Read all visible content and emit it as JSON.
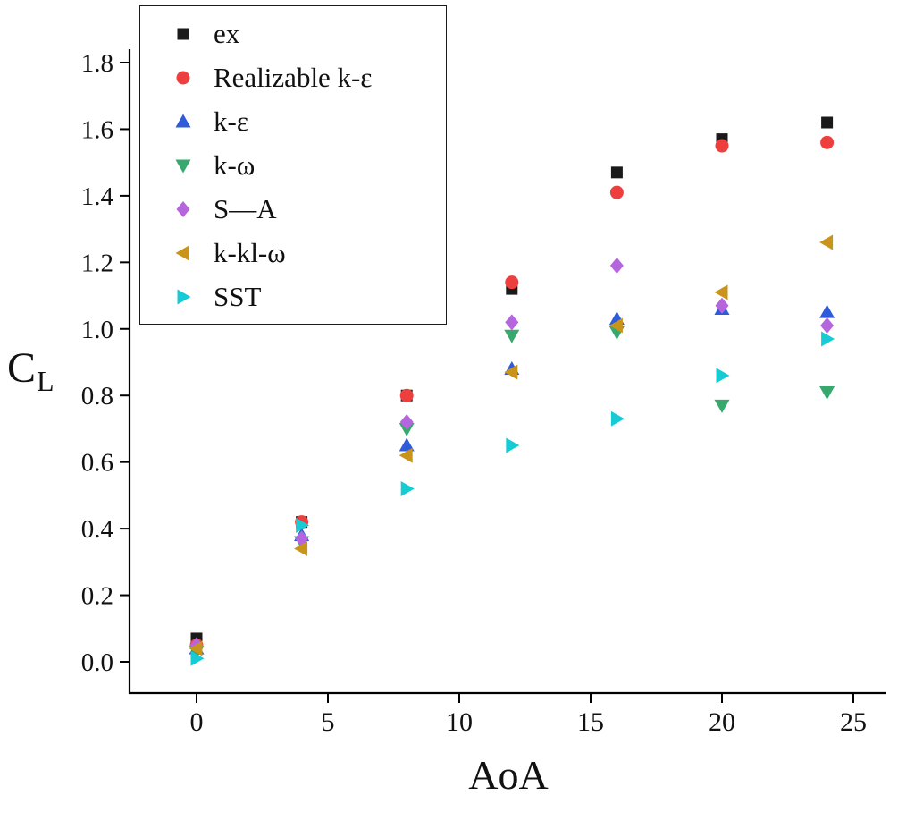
{
  "chart_data": {
    "type": "scatter",
    "title": "",
    "xlabel": "AoA",
    "ylabel": "C_L",
    "ylabel_main": "C",
    "ylabel_sub": "L",
    "xlim": [
      -2.5,
      26.5
    ],
    "ylim": [
      -0.17,
      1.93
    ],
    "x_ticks": [
      "0",
      "5",
      "10",
      "15",
      "20",
      "25"
    ],
    "y_ticks": [
      "0.0",
      "0.2",
      "0.4",
      "0.6",
      "0.8",
      "1.0",
      "1.2",
      "1.4",
      "1.6",
      "1.8"
    ],
    "grid": false,
    "legend_position": "top-left",
    "axis_color": "#000000",
    "x": [
      0,
      4,
      8,
      12,
      16,
      20,
      24
    ],
    "series": [
      {
        "name": "ex",
        "marker": "square",
        "color": "#1a1a1a",
        "values": [
          0.07,
          0.42,
          0.8,
          1.12,
          1.47,
          1.57,
          1.62
        ]
      },
      {
        "name": "Realizable k-ε",
        "marker": "circle",
        "color": "#ee3f3f",
        "values": [
          0.05,
          0.42,
          0.8,
          1.14,
          1.41,
          1.55,
          1.56
        ]
      },
      {
        "name": "k-ε",
        "marker": "triangle-up",
        "color": "#2d5bd9",
        "values": [
          0.04,
          0.38,
          0.65,
          0.88,
          1.03,
          1.06,
          1.05
        ]
      },
      {
        "name": "k-ω",
        "marker": "triangle-down",
        "color": "#37a96c",
        "values": [
          0.03,
          0.36,
          0.7,
          0.98,
          0.99,
          0.77,
          0.81
        ]
      },
      {
        "name": "S—A",
        "marker": "diamond",
        "color": "#b566de",
        "values": [
          0.05,
          0.37,
          0.72,
          1.02,
          1.19,
          1.07,
          1.01
        ]
      },
      {
        "name": "k-kl-ω",
        "marker": "triangle-left",
        "color": "#c9941a",
        "values": [
          0.04,
          0.34,
          0.62,
          0.87,
          1.01,
          1.11,
          1.26
        ]
      },
      {
        "name": "SST",
        "marker": "triangle-right",
        "color": "#17cbd4",
        "values": [
          0.01,
          0.41,
          0.52,
          0.65,
          0.73,
          0.86,
          0.97
        ]
      }
    ]
  }
}
